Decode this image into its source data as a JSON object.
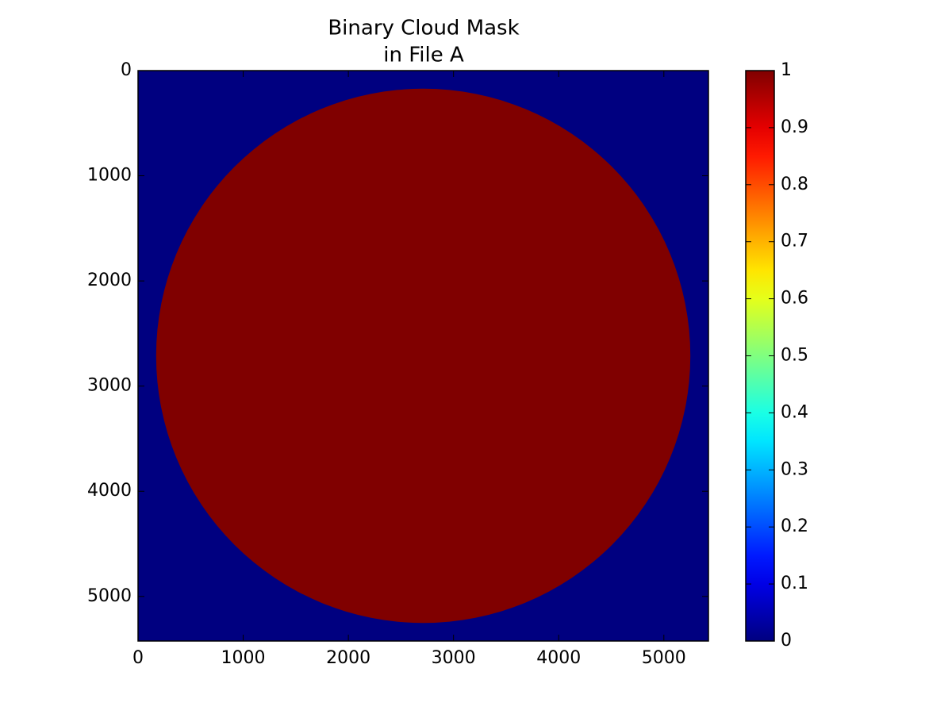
{
  "chart_data": {
    "type": "image",
    "title": [
      "Binary Cloud Mask",
      "in File A"
    ],
    "colormap": "jet",
    "xlim": [
      0,
      5424
    ],
    "ylim": [
      5424,
      0
    ],
    "xticks": [
      0,
      1000,
      2000,
      3000,
      4000,
      5000
    ],
    "yticks": [
      0,
      1000,
      2000,
      3000,
      4000,
      5000
    ],
    "image": {
      "background": 0,
      "disk_value": 1,
      "center": [
        2712,
        2712
      ],
      "radius": 2540
    },
    "colorbar": {
      "lim": [
        0,
        1
      ],
      "ticks": [
        0,
        0.1,
        0.2,
        0.3,
        0.4,
        0.5,
        0.6,
        0.7,
        0.8,
        0.9,
        1
      ]
    }
  }
}
